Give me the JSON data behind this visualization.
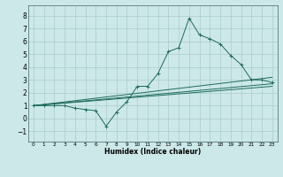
{
  "xlabel": "Humidex (Indice chaleur)",
  "bg_color": "#cce8e8",
  "grid_color": "#aacccc",
  "line_color": "#1e6b5e",
  "xlim": [
    -0.5,
    23.5
  ],
  "ylim": [
    -1.8,
    8.8
  ],
  "xticks": [
    0,
    1,
    2,
    3,
    4,
    5,
    6,
    7,
    8,
    9,
    10,
    11,
    12,
    13,
    14,
    15,
    16,
    17,
    18,
    19,
    20,
    21,
    22,
    23
  ],
  "yticks": [
    -1,
    0,
    1,
    2,
    3,
    4,
    5,
    6,
    7,
    8
  ],
  "line1_x": [
    0,
    1,
    2,
    3,
    4,
    5,
    6,
    7,
    8,
    9,
    10,
    11,
    12,
    13,
    14,
    15,
    16,
    17,
    18,
    19,
    20,
    21,
    22,
    23
  ],
  "line1_y": [
    1.0,
    1.0,
    1.0,
    1.0,
    0.8,
    0.7,
    0.6,
    -0.6,
    0.5,
    1.3,
    2.5,
    2.5,
    3.5,
    5.2,
    5.5,
    7.8,
    6.5,
    6.2,
    5.8,
    4.9,
    4.2,
    3.0,
    3.0,
    2.8
  ],
  "line2_x": [
    0,
    23
  ],
  "line2_y": [
    1.0,
    3.2
  ],
  "line3_x": [
    0,
    23
  ],
  "line3_y": [
    1.0,
    2.7
  ],
  "line4_x": [
    0,
    23
  ],
  "line4_y": [
    1.0,
    2.5
  ]
}
